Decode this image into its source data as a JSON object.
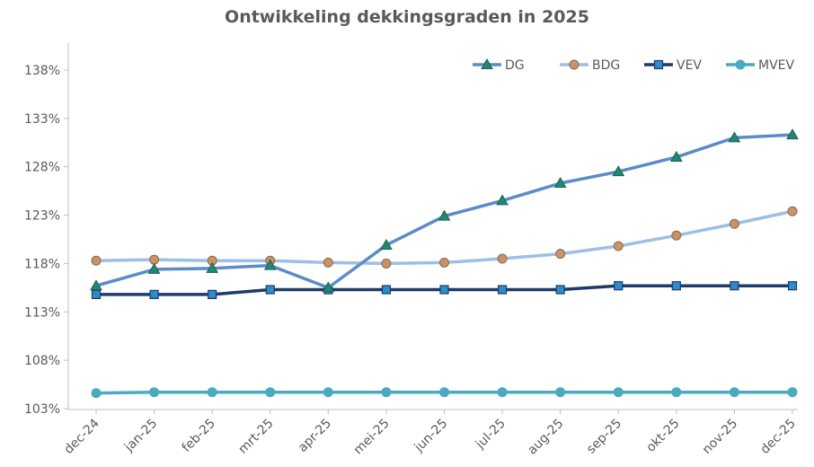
{
  "chart_data": {
    "type": "line",
    "title": "Ontwikkeling dekkingsgraden in 2025",
    "xlabel": "",
    "ylabel": "",
    "categories": [
      "dec-24",
      "jan-25",
      "feb-25",
      "mrt-25",
      "apr-25",
      "mei-25",
      "jun-25",
      "jul-25",
      "aug-25",
      "sep-25",
      "okt-25",
      "nov-25",
      "dec-25"
    ],
    "yticks": [
      "103%",
      "108%",
      "113%",
      "118%",
      "123%",
      "128%",
      "133%",
      "138%"
    ],
    "ylim": [
      103,
      140
    ],
    "grid": false,
    "legend_position": "top-right",
    "series": [
      {
        "name": "DG",
        "marker": "triangle",
        "color": "#5b8cc8",
        "marker_fill": "#1f8a70",
        "values": [
          115.7,
          117.4,
          117.5,
          117.8,
          115.5,
          119.9,
          122.9,
          124.5,
          126.3,
          127.5,
          129.0,
          131.0,
          131.3
        ]
      },
      {
        "name": "BDG",
        "marker": "circle",
        "color": "#9dbfe6",
        "marker_fill": "#c8926a",
        "values": [
          118.3,
          118.4,
          118.3,
          118.3,
          118.1,
          118.0,
          118.1,
          118.5,
          119.0,
          119.8,
          120.9,
          122.1,
          123.4
        ]
      },
      {
        "name": "VEV",
        "marker": "square",
        "color": "#1f3b6b",
        "marker_fill": "#2e8cc8",
        "values": [
          114.8,
          114.8,
          114.8,
          115.3,
          115.3,
          115.3,
          115.3,
          115.3,
          115.3,
          115.7,
          115.7,
          115.7,
          115.7
        ]
      },
      {
        "name": "MVEV",
        "marker": "circle",
        "color": "#4aaabf",
        "marker_fill": "#4aaabf",
        "values": [
          104.6,
          104.7,
          104.7,
          104.7,
          104.7,
          104.7,
          104.7,
          104.7,
          104.7,
          104.7,
          104.7,
          104.7,
          104.7
        ]
      }
    ]
  }
}
